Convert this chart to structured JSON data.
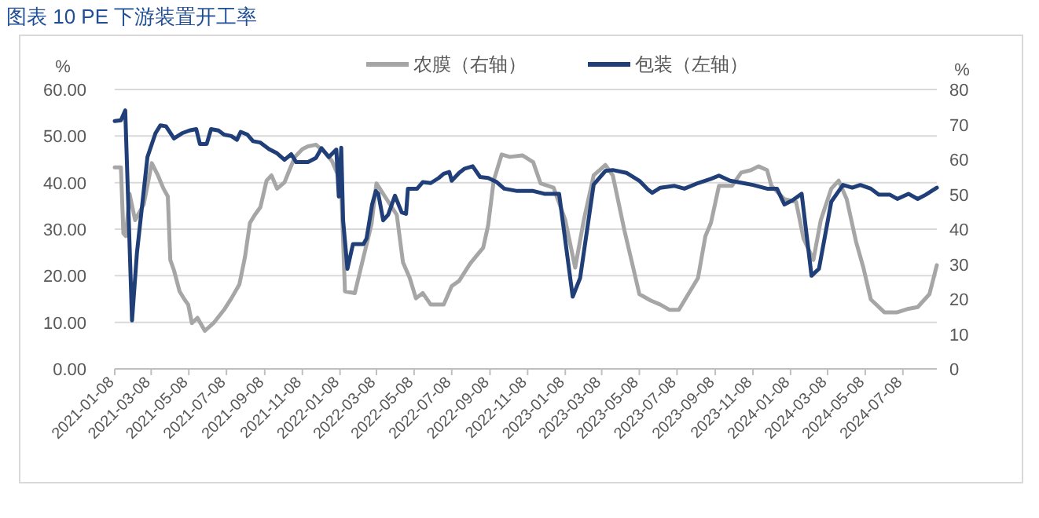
{
  "chart_data": {
    "type": "line",
    "title": "图表 10 PE 下游装置开工率",
    "ylabel": "%",
    "y2label": "%",
    "legend": "top",
    "grid": "y",
    "xlim": [
      "2021-01-08",
      "2024-09-01"
    ],
    "xticks": [
      "2021-01-08",
      "2021-03-08",
      "2021-05-08",
      "2021-07-08",
      "2021-09-08",
      "2021-11-08",
      "2022-01-08",
      "2022-03-08",
      "2022-05-08",
      "2022-07-08",
      "2022-09-08",
      "2022-11-08",
      "2023-01-08",
      "2023-03-08",
      "2023-05-08",
      "2023-07-08",
      "2023-09-08",
      "2023-11-08",
      "2024-01-08",
      "2024-03-08",
      "2024-05-08",
      "2024-07-08"
    ],
    "ylim": [
      0,
      60
    ],
    "yticks": [
      {
        "value": 0,
        "label": "0.00"
      },
      {
        "value": 10,
        "label": "10.00"
      },
      {
        "value": 20,
        "label": "20.00"
      },
      {
        "value": 30,
        "label": "30.00"
      },
      {
        "value": 40,
        "label": "40.00"
      },
      {
        "value": 50,
        "label": "50.00"
      },
      {
        "value": 60,
        "label": "60.00"
      }
    ],
    "y2lim": [
      0,
      80
    ],
    "y2ticks": [
      0,
      10,
      20,
      30,
      40,
      50,
      60,
      70,
      80
    ],
    "series": [
      {
        "name": "农膜（右轴）",
        "color": "#a6a6a6",
        "axis": "y2",
        "x": [
          "2021-01-08",
          "2021-01-18",
          "2021-01-22",
          "2021-01-26",
          "2021-02-01",
          "2021-02-10",
          "2021-02-24",
          "2021-03-09",
          "2021-03-19",
          "2021-03-28",
          "2021-04-04",
          "2021-04-08",
          "2021-04-14",
          "2021-04-23",
          "2021-05-01",
          "2021-05-07",
          "2021-05-13",
          "2021-05-22",
          "2021-06-03",
          "2021-06-17",
          "2021-07-04",
          "2021-07-16",
          "2021-07-29",
          "2021-08-07",
          "2021-08-15",
          "2021-08-23",
          "2021-09-01",
          "2021-09-11",
          "2021-09-19",
          "2021-09-28",
          "2021-10-10",
          "2021-10-18",
          "2021-10-27",
          "2021-11-08",
          "2021-11-17",
          "2021-11-30",
          "2021-12-13",
          "2021-12-26",
          "2022-01-04",
          "2022-01-10",
          "2022-01-16",
          "2022-02-01",
          "2022-02-15",
          "2022-02-28",
          "2022-03-08",
          "2022-04-10",
          "2022-04-20",
          "2022-05-01",
          "2022-05-11",
          "2022-05-22",
          "2022-06-04",
          "2022-06-25",
          "2022-07-08",
          "2022-07-20",
          "2022-08-07",
          "2022-08-28",
          "2022-09-05",
          "2022-09-14",
          "2022-09-27",
          "2022-10-10",
          "2022-10-31",
          "2022-11-17",
          "2022-11-29",
          "2022-12-20",
          "2023-01-08",
          "2023-01-24",
          "2023-02-07",
          "2023-02-23",
          "2023-03-14",
          "2023-03-26",
          "2023-04-14",
          "2023-04-26",
          "2023-05-08",
          "2023-05-26",
          "2023-06-11",
          "2023-06-26",
          "2023-07-11",
          "2023-07-29",
          "2023-08-11",
          "2023-08-23",
          "2023-09-01",
          "2023-09-14",
          "2023-10-05",
          "2023-10-20",
          "2023-11-05",
          "2023-11-17",
          "2023-12-01",
          "2023-12-08",
          "2023-12-29",
          "2024-01-17",
          "2024-01-29",
          "2024-02-14",
          "2024-02-26",
          "2024-03-14",
          "2024-03-26",
          "2024-04-08",
          "2024-04-23",
          "2024-05-05",
          "2024-05-17",
          "2024-06-08",
          "2024-06-29",
          "2024-07-17",
          "2024-08-01",
          "2024-08-20",
          "2024-09-01"
        ],
        "values": [
          57.7,
          57.7,
          38.8,
          38,
          50.1,
          42.6,
          47.1,
          58.9,
          55.4,
          51.6,
          49.4,
          31.2,
          28.2,
          22.2,
          19.9,
          18.4,
          13.1,
          14.6,
          10.9,
          13.1,
          16.9,
          20.2,
          24.2,
          32,
          41.8,
          44.1,
          46.3,
          53.9,
          55.4,
          51.6,
          53.4,
          56.9,
          60.7,
          62.9,
          63.7,
          64.2,
          62.2,
          59.5,
          55.8,
          51.6,
          22.2,
          21.7,
          32,
          41.4,
          53.1,
          44.1,
          30.5,
          26,
          20.2,
          21.7,
          18.4,
          18.4,
          23.7,
          25.2,
          30.2,
          34.7,
          41.1,
          53.9,
          61.4,
          60.7,
          61.1,
          59.2,
          53.1,
          51.9,
          42.6,
          29,
          42.6,
          55.4,
          58.4,
          55.4,
          39.5,
          30.5,
          21.4,
          19.6,
          18.4,
          16.9,
          16.9,
          22.2,
          26,
          38,
          41.8,
          52.4,
          52.4,
          56.2,
          56.9,
          58,
          56.9,
          52.4,
          48.6,
          47.8,
          37.3,
          31.2,
          42.6,
          51.6,
          53.9,
          48.6,
          36.5,
          29,
          19.9,
          16.2,
          16.2,
          17.2,
          17.7,
          21.4,
          29.7
        ]
      },
      {
        "name": "包装（左轴）",
        "color": "#203f78",
        "x": [
          "2021-01-08",
          "2021-01-18",
          "2021-01-25",
          "2021-02-05",
          "2021-02-13",
          "2021-03-02",
          "2021-03-15",
          "2021-03-23",
          "2021-04-01",
          "2021-04-14",
          "2021-04-27",
          "2021-05-09",
          "2021-05-20",
          "2021-05-26",
          "2021-06-06",
          "2021-06-13",
          "2021-06-25",
          "2021-07-04",
          "2021-07-16",
          "2021-07-25",
          "2021-07-31",
          "2021-08-11",
          "2021-08-20",
          "2021-09-01",
          "2021-09-15",
          "2021-09-28",
          "2021-10-10",
          "2021-10-21",
          "2021-10-29",
          "2021-11-17",
          "2021-11-30",
          "2021-12-09",
          "2021-12-21",
          "2022-01-02",
          "2022-01-06",
          "2022-01-10",
          "2022-01-13",
          "2022-01-20",
          "2022-01-29",
          "2022-02-15",
          "2022-02-20",
          "2022-03-01",
          "2022-03-07",
          "2022-03-11",
          "2022-03-19",
          "2022-03-27",
          "2022-04-07",
          "2022-04-18",
          "2022-04-25",
          "2022-04-28",
          "2022-05-13",
          "2022-05-22",
          "2022-06-04",
          "2022-06-17",
          "2022-06-25",
          "2022-07-04",
          "2022-07-08",
          "2022-07-20",
          "2022-07-29",
          "2022-08-11",
          "2022-08-23",
          "2022-09-05",
          "2022-09-19",
          "2022-10-01",
          "2022-10-22",
          "2022-11-17",
          "2022-12-05",
          "2022-12-29",
          "2023-01-20",
          "2023-02-01",
          "2023-02-23",
          "2023-03-14",
          "2023-03-26",
          "2023-04-17",
          "2023-05-08",
          "2023-05-22",
          "2023-05-29",
          "2023-06-11",
          "2023-07-04",
          "2023-07-20",
          "2023-08-11",
          "2023-09-01",
          "2023-09-14",
          "2023-10-02",
          "2023-10-23",
          "2023-11-08",
          "2023-12-01",
          "2023-12-17",
          "2023-12-29",
          "2024-01-11",
          "2024-01-26",
          "2024-02-11",
          "2024-02-23",
          "2024-03-14",
          "2024-04-02",
          "2024-04-17",
          "2024-04-30",
          "2024-05-17",
          "2024-05-30",
          "2024-06-17",
          "2024-06-29",
          "2024-07-17",
          "2024-08-01",
          "2024-08-14",
          "2024-09-01"
        ],
        "values": [
          53.2,
          53.4,
          55.5,
          10.4,
          25,
          45.5,
          50.6,
          52.3,
          52.1,
          49.5,
          50.6,
          51.2,
          51.5,
          48.3,
          48.3,
          51.5,
          51.2,
          50.3,
          50,
          49.2,
          50.9,
          50.3,
          48.9,
          48.6,
          47.2,
          46.3,
          44.9,
          46.1,
          44.4,
          44.4,
          45.3,
          47.4,
          45.5,
          47.1,
          37,
          47.5,
          31.9,
          21.5,
          26.8,
          26.8,
          28,
          35.3,
          38.2,
          37.6,
          31.9,
          33.1,
          37.2,
          33.6,
          33.3,
          38.7,
          38.7,
          40.1,
          39.9,
          41,
          41.9,
          42.3,
          40.4,
          42.1,
          43,
          43.5,
          41.2,
          41,
          40.1,
          38.7,
          38.2,
          38.2,
          37.6,
          37.6,
          15.5,
          19.5,
          39.6,
          42.5,
          42.7,
          42.1,
          40.4,
          38.5,
          37.8,
          38.9,
          39.3,
          38.7,
          39.9,
          40.8,
          41.5,
          40.4,
          39.9,
          39.5,
          38.7,
          38.7,
          35.3,
          36.2,
          37.6,
          20,
          21.5,
          35.9,
          39.5,
          38.9,
          39.5,
          38.7,
          37.4,
          37.4,
          36.5,
          37.6,
          36.5,
          37.4,
          38.9
        ]
      }
    ]
  }
}
